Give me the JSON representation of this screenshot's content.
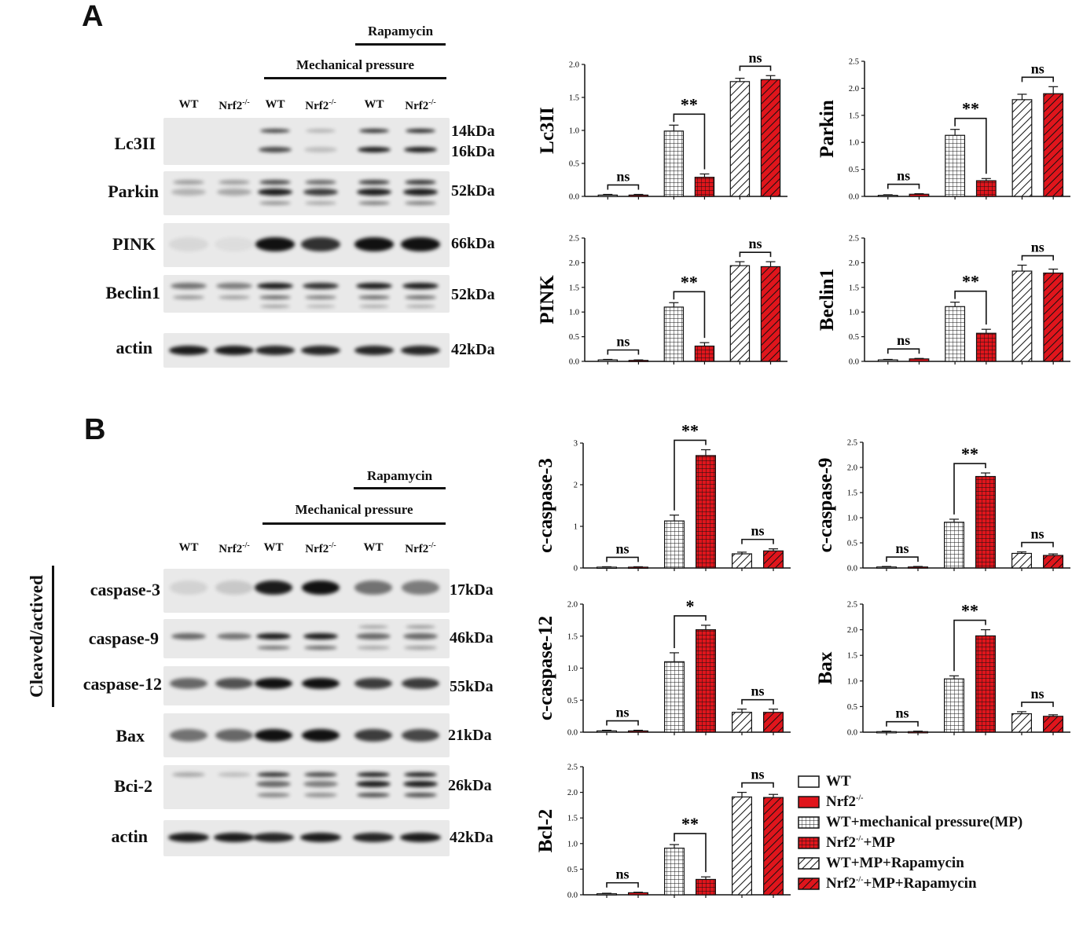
{
  "panel_a": {
    "letter": "A",
    "header_top": "Rapamycin",
    "header_mid": "Mechanical pressure",
    "lanes": [
      {
        "base": "WT",
        "sup": ""
      },
      {
        "base": "Nrf2",
        "sup": "-/-"
      },
      {
        "base": "WT",
        "sup": ""
      },
      {
        "base": "Nrf2",
        "sup": "-/-"
      },
      {
        "base": "WT",
        "sup": ""
      },
      {
        "base": "Nrf2",
        "sup": "-/-"
      }
    ],
    "proteins": [
      {
        "name": "Lc3II",
        "kda": [
          "14kDa",
          "16kDa"
        ]
      },
      {
        "name": "Parkin",
        "kda": [
          "52kDa"
        ]
      },
      {
        "name": "PINK",
        "kda": [
          "66kDa"
        ]
      },
      {
        "name": "Beclin1",
        "kda": [
          "52kDa"
        ]
      },
      {
        "name": "actin",
        "kda": [
          "42kDa"
        ]
      }
    ]
  },
  "panel_b": {
    "letter": "B",
    "header_top": "Rapamycin",
    "header_mid": "Mechanical pressure",
    "side_label": "Cleaved/actived",
    "lanes": [
      {
        "base": "WT",
        "sup": ""
      },
      {
        "base": "Nrf2",
        "sup": "-/-"
      },
      {
        "base": "WT",
        "sup": ""
      },
      {
        "base": "Nrf2",
        "sup": "-/-"
      },
      {
        "base": "WT",
        "sup": ""
      },
      {
        "base": "Nrf2",
        "sup": "-/-"
      }
    ],
    "proteins": [
      {
        "name": "caspase-3",
        "kda": "17kDa"
      },
      {
        "name": "caspase-9",
        "kda": "46kDa"
      },
      {
        "name": "caspase-12",
        "kda": "55kDa"
      },
      {
        "name": "Bax",
        "kda": "21kDa"
      },
      {
        "name": "Bci-2",
        "kda": "26kDa"
      },
      {
        "name": "actin",
        "kda": "42kDa"
      }
    ]
  },
  "colors": {
    "red": "#e0151c",
    "black": "#111111",
    "white": "#ffffff"
  },
  "legend": [
    {
      "base": "WT",
      "sup": "",
      "rest": "",
      "pattern": "white"
    },
    {
      "base": "Nrf2",
      "sup": "-/-",
      "rest": "",
      "pattern": "red"
    },
    {
      "base": "WT",
      "sup": "",
      "rest": "+mechanical pressure(MP)",
      "pattern": "grid-white"
    },
    {
      "base": "Nrf2",
      "sup": "-/-",
      "rest": "+MP",
      "pattern": "grid-red"
    },
    {
      "base": "WT",
      "sup": "",
      "rest": "+MP+Rapamycin",
      "pattern": "hatch-white"
    },
    {
      "base": "Nrf2",
      "sup": "-/-",
      "rest": "+MP+Rapamycin",
      "pattern": "hatch-red"
    }
  ],
  "chart_data": [
    {
      "type": "bar",
      "ylabel": "Lc3II",
      "ylim": [
        0,
        2.0
      ],
      "ticks": [
        "0.0",
        "0.5",
        "1.0",
        "1.5",
        "2.0"
      ],
      "values": [
        0.02,
        0.02,
        0.99,
        0.29,
        1.74,
        1.77
      ],
      "errors": [
        0.01,
        0.01,
        0.09,
        0.05,
        0.05,
        0.06
      ],
      "annotations": [
        {
          "pair": [
            0,
            1
          ],
          "text": "ns"
        },
        {
          "pair": [
            2,
            3
          ],
          "text": "**"
        },
        {
          "pair": [
            4,
            5
          ],
          "text": "ns"
        }
      ]
    },
    {
      "type": "bar",
      "ylabel": "Parkin",
      "ylim": [
        0,
        2.5
      ],
      "ticks": [
        "0.0",
        "0.5",
        "1.0",
        "1.5",
        "2.0",
        "2.5"
      ],
      "values": [
        0.02,
        0.04,
        1.13,
        0.29,
        1.79,
        1.9
      ],
      "errors": [
        0.01,
        0.01,
        0.11,
        0.04,
        0.1,
        0.13
      ],
      "annotations": [
        {
          "pair": [
            0,
            1
          ],
          "text": "ns"
        },
        {
          "pair": [
            2,
            3
          ],
          "text": "**"
        },
        {
          "pair": [
            4,
            5
          ],
          "text": "ns"
        }
      ]
    },
    {
      "type": "bar",
      "ylabel": "PINK",
      "ylim": [
        0,
        2.5
      ],
      "ticks": [
        "0.0",
        "0.5",
        "1.0",
        "1.5",
        "2.0",
        "2.5"
      ],
      "values": [
        0.03,
        0.02,
        1.1,
        0.31,
        1.94,
        1.92
      ],
      "errors": [
        0.01,
        0.01,
        0.09,
        0.07,
        0.08,
        0.1
      ],
      "annotations": [
        {
          "pair": [
            0,
            1
          ],
          "text": "ns"
        },
        {
          "pair": [
            2,
            3
          ],
          "text": "**"
        },
        {
          "pair": [
            4,
            5
          ],
          "text": "ns"
        }
      ]
    },
    {
      "type": "bar",
      "ylabel": "Beclin1",
      "ylim": [
        0,
        2.5
      ],
      "ticks": [
        "0.0",
        "0.5",
        "1.0",
        "1.5",
        "2.0",
        "2.5"
      ],
      "values": [
        0.03,
        0.05,
        1.11,
        0.57,
        1.83,
        1.79
      ],
      "errors": [
        0.01,
        0.01,
        0.09,
        0.08,
        0.12,
        0.08
      ],
      "annotations": [
        {
          "pair": [
            0,
            1
          ],
          "text": "ns"
        },
        {
          "pair": [
            2,
            3
          ],
          "text": "**"
        },
        {
          "pair": [
            4,
            5
          ],
          "text": "ns"
        }
      ]
    },
    {
      "type": "bar",
      "ylabel": "c-caspase-3",
      "ylim": [
        0,
        3
      ],
      "ticks": [
        "0",
        "1",
        "2",
        "3"
      ],
      "values": [
        0.02,
        0.02,
        1.13,
        2.7,
        0.34,
        0.41
      ],
      "errors": [
        0.01,
        0.01,
        0.14,
        0.14,
        0.04,
        0.05
      ],
      "annotations": [
        {
          "pair": [
            0,
            1
          ],
          "text": "ns"
        },
        {
          "pair": [
            2,
            3
          ],
          "text": "**"
        },
        {
          "pair": [
            4,
            5
          ],
          "text": "ns"
        }
      ]
    },
    {
      "type": "bar",
      "ylabel": "c-caspase-9",
      "ylim": [
        0,
        2.5
      ],
      "ticks": [
        "0.0",
        "0.5",
        "1.0",
        "1.5",
        "2.0",
        "2.5"
      ],
      "values": [
        0.02,
        0.02,
        0.91,
        1.82,
        0.29,
        0.25
      ],
      "errors": [
        0.01,
        0.01,
        0.06,
        0.07,
        0.03,
        0.03
      ],
      "annotations": [
        {
          "pair": [
            0,
            1
          ],
          "text": "ns"
        },
        {
          "pair": [
            2,
            3
          ],
          "text": "**"
        },
        {
          "pair": [
            4,
            5
          ],
          "text": "ns"
        }
      ]
    },
    {
      "type": "bar",
      "ylabel": "c-caspase-12",
      "ylim": [
        0,
        2.0
      ],
      "ticks": [
        "0.0",
        "0.5",
        "1.0",
        "1.5",
        "2.0"
      ],
      "values": [
        0.02,
        0.02,
        1.1,
        1.6,
        0.31,
        0.31
      ],
      "errors": [
        0.01,
        0.01,
        0.14,
        0.07,
        0.05,
        0.05
      ],
      "annotations": [
        {
          "pair": [
            0,
            1
          ],
          "text": "ns"
        },
        {
          "pair": [
            2,
            3
          ],
          "text": "*"
        },
        {
          "pair": [
            4,
            5
          ],
          "text": "ns"
        }
      ]
    },
    {
      "type": "bar",
      "ylabel": "Bax",
      "ylim": [
        0,
        2.5
      ],
      "ticks": [
        "0.0",
        "0.5",
        "1.0",
        "1.5",
        "2.0",
        "2.5"
      ],
      "values": [
        0.01,
        0.01,
        1.04,
        1.88,
        0.36,
        0.31
      ],
      "errors": [
        0.01,
        0.01,
        0.06,
        0.12,
        0.04,
        0.03
      ],
      "annotations": [
        {
          "pair": [
            0,
            1
          ],
          "text": "ns"
        },
        {
          "pair": [
            2,
            3
          ],
          "text": "**"
        },
        {
          "pair": [
            4,
            5
          ],
          "text": "ns"
        }
      ]
    },
    {
      "type": "bar",
      "ylabel": "Bcl-2",
      "ylim": [
        0,
        2.5
      ],
      "ticks": [
        "0.0",
        "0.5",
        "1.0",
        "1.5",
        "2.0",
        "2.5"
      ],
      "values": [
        0.02,
        0.04,
        0.91,
        0.3,
        1.91,
        1.9
      ],
      "errors": [
        0.01,
        0.01,
        0.07,
        0.05,
        0.09,
        0.06
      ],
      "annotations": [
        {
          "pair": [
            0,
            1
          ],
          "text": "ns"
        },
        {
          "pair": [
            2,
            3
          ],
          "text": "**"
        },
        {
          "pair": [
            4,
            5
          ],
          "text": "ns"
        }
      ]
    }
  ]
}
